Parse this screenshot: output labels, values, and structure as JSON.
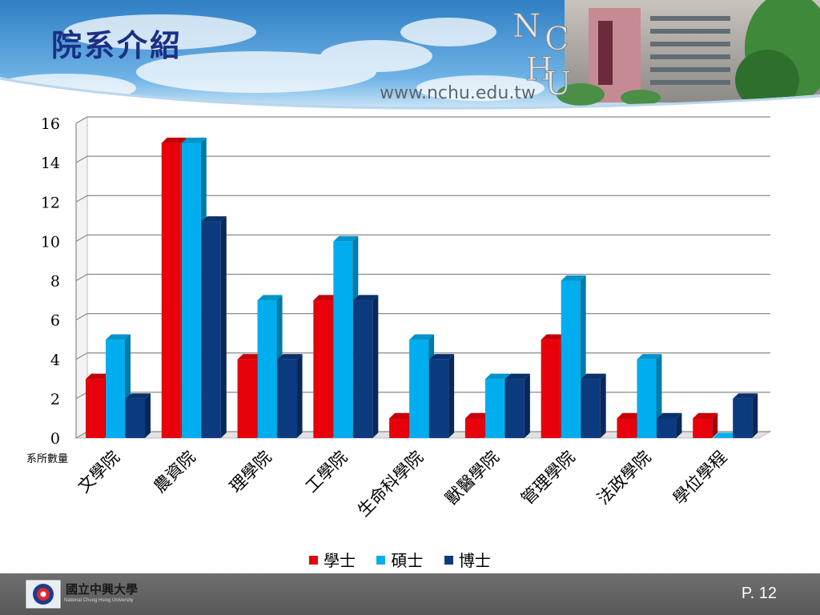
{
  "slide": {
    "title": "院系介紹",
    "url_text": "www.nchu.edu.tw",
    "logo_letters": [
      "N",
      "C",
      "H",
      "U"
    ],
    "page_number": "P. 12"
  },
  "footer": {
    "university_name_zh": "國立中興大學",
    "university_name_en": "National Chung Hsing University"
  },
  "colors": {
    "bachelor": "#e8000b",
    "master": "#00aeef",
    "doctor": "#0b3a7e",
    "banner_sky": "#3f90d0",
    "title": "#1c2f86"
  },
  "chart_data": {
    "type": "bar",
    "categories": [
      "文學院",
      "農資院",
      "理學院",
      "工學院",
      "生命科學院",
      "獸醫學院",
      "管理學院",
      "法政學院",
      "學位學程"
    ],
    "series": [
      {
        "name": "學士",
        "values": [
          3,
          15,
          4,
          7,
          1,
          1,
          5,
          1,
          1
        ]
      },
      {
        "name": "碩士",
        "values": [
          5,
          15,
          7,
          10,
          5,
          3,
          8,
          4,
          0
        ]
      },
      {
        "name": "博士",
        "values": [
          2,
          11,
          4,
          7,
          4,
          3,
          3,
          1,
          2
        ]
      }
    ],
    "ylabel": "系所數量",
    "xlabel": "",
    "ylim": [
      0,
      16
    ],
    "yticks": [
      0,
      2,
      4,
      6,
      8,
      10,
      12,
      14,
      16
    ],
    "grid": true,
    "legend_position": "bottom"
  }
}
